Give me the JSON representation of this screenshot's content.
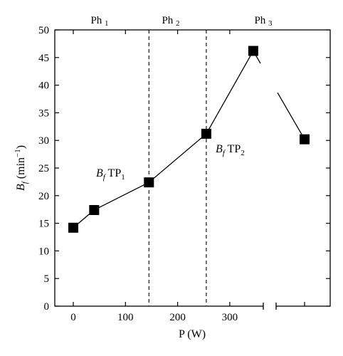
{
  "chart_data": {
    "type": "line",
    "xlabel": "P (W)",
    "ylabel": {
      "base": "B",
      "sub": "f",
      "units": " (min",
      "sup": "−1",
      "close": ")"
    },
    "xlim": [
      -25,
      380
    ],
    "ylim": [
      0,
      50
    ],
    "x_ticks": [
      "0",
      "100",
      "200",
      "300"
    ],
    "y_ticks": [
      "0",
      "5",
      "10",
      "15",
      "20",
      "25",
      "30",
      "35",
      "40",
      "45",
      "50"
    ],
    "axis_break": true,
    "series": [
      {
        "points": [
          [
            0,
            14.2
          ],
          [
            40,
            17.4
          ],
          [
            145,
            22.4
          ],
          [
            255,
            31.2
          ],
          [
            345,
            46.2
          ],
          [
            435,
            30.2
          ]
        ]
      }
    ],
    "phase_boundaries": [
      145,
      255
    ],
    "phases": [
      {
        "label": "Ph",
        "sub": "1"
      },
      {
        "label": "Ph",
        "sub": "2"
      },
      {
        "label": "Ph",
        "sub": "3"
      }
    ],
    "annotations": [
      {
        "base": "B",
        "sub": "f",
        "text": "TP",
        "subtext": "1"
      },
      {
        "base": "B",
        "sub": "f",
        "text": "TP",
        "subtext": "2"
      }
    ]
  }
}
